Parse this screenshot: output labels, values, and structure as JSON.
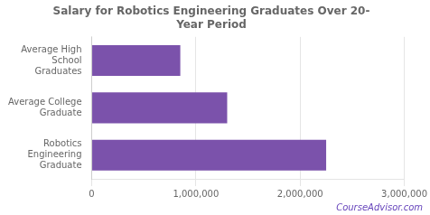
{
  "chart_data": {
    "type": "bar",
    "orientation": "horizontal",
    "title": "Salary for Robotics Engineering Graduates Over 20-\nYear Period",
    "categories": [
      "Robotics\nEngineering\nGraduate",
      "Average College\nGraduate",
      "Average High\nSchool\nGraduates"
    ],
    "values": [
      2250000,
      1300000,
      850000
    ],
    "color": "#7B52AB",
    "xlim": [
      0,
      3000000
    ],
    "xticks": [
      0,
      {
        "value": 1000000,
        "label": "1,000,000"
      },
      {
        "value": 2000000,
        "label": "2,000,000"
      },
      {
        "value": 3000000,
        "label": "3,000,000"
      }
    ],
    "grid": true,
    "annotations": [
      {
        "text": "CourseAdvisor.com",
        "color": "#6644BB"
      }
    ]
  }
}
